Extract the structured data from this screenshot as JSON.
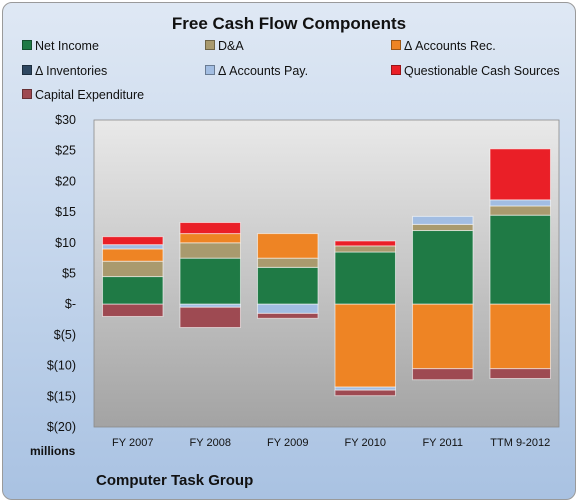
{
  "chart_data": {
    "type": "bar",
    "stacked": true,
    "title": "Free Cash Flow Components",
    "units_label": "millions",
    "source_label": "Computer Task Group",
    "categories": [
      "FY 2007",
      "FY 2008",
      "FY 2009",
      "FY 2010",
      "FY 2011",
      "TTM 9-2012"
    ],
    "ylim": [
      -20,
      30
    ],
    "yticks": [
      30,
      25,
      20,
      15,
      10,
      5,
      0,
      -5,
      -10,
      -15,
      -20
    ],
    "ytick_labels": [
      "$30",
      "$25",
      "$20",
      "$15",
      "$10",
      "$5",
      "$-",
      "$(5)",
      "$(10)",
      "$(15)",
      "$(20)"
    ],
    "grid": false,
    "legend_position": "top",
    "series": [
      {
        "name": "Net Income",
        "color": "#1f7a45",
        "values": [
          4.5,
          7.5,
          6.0,
          8.5,
          12.0,
          14.5
        ]
      },
      {
        "name": "D&A",
        "color": "#a99a6e",
        "values": [
          2.5,
          2.5,
          1.5,
          1.0,
          1.0,
          1.5
        ]
      },
      {
        "name": "Δ Accounts Rec.",
        "color": "#ee8424",
        "values": [
          2.0,
          1.5,
          4.0,
          -13.5,
          -10.5,
          -10.5
        ]
      },
      {
        "name": "Δ Inventories",
        "color": "#2e4761",
        "values": [
          0,
          0,
          0,
          0,
          0,
          0
        ]
      },
      {
        "name": "Δ Accounts Pay.",
        "color": "#a2bde2",
        "values": [
          0.7,
          -0.5,
          -1.5,
          -0.5,
          1.3,
          1.0
        ]
      },
      {
        "name": "Questionable Cash Sources",
        "color": "#ea1f27",
        "values": [
          1.3,
          1.8,
          0,
          0.8,
          0,
          8.3
        ]
      },
      {
        "name": "Capital Expenditure",
        "color": "#9e4a52",
        "values": [
          -2.0,
          -3.3,
          -0.8,
          -0.9,
          -1.8,
          -1.6
        ]
      }
    ]
  }
}
